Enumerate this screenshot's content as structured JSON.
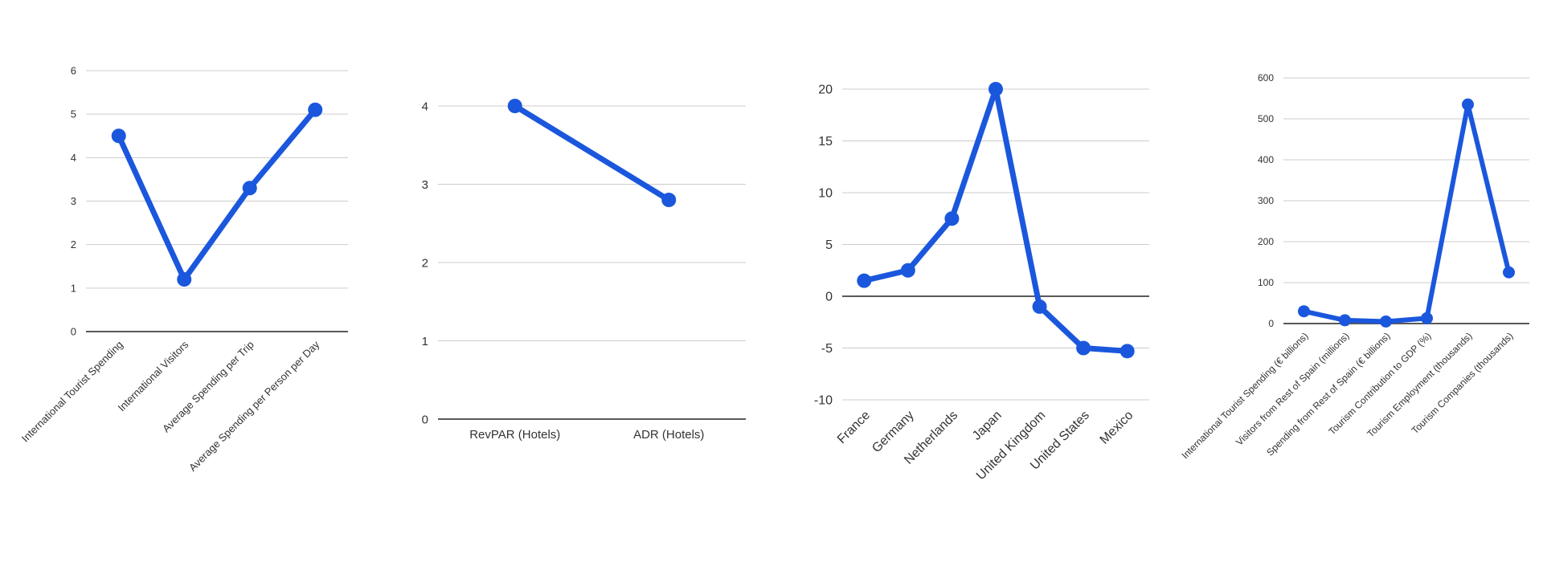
{
  "style": {
    "line_color": "#1b57dd",
    "grid_color": "#cccccc",
    "axis_color": "#595959",
    "label_color": "#333333",
    "background": "#ffffff"
  },
  "chart_data": [
    {
      "type": "line",
      "title": "",
      "xlabel": "",
      "ylabel": "",
      "categories": [
        "International Tourist Spending",
        "International Visitors",
        "Average Spending per Trip",
        "Average Spending per Person per Day"
      ],
      "values": [
        4.5,
        1.2,
        3.3,
        5.1
      ],
      "ylim": [
        0,
        6
      ],
      "ytick_step": 1,
      "x_label_rotation": 45,
      "grid": true,
      "legend": "none"
    },
    {
      "type": "line",
      "title": "",
      "xlabel": "",
      "ylabel": "",
      "categories": [
        "RevPAR (Hotels)",
        "ADR (Hotels)"
      ],
      "values": [
        4.0,
        2.8
      ],
      "ylim": [
        0,
        4
      ],
      "ytick_step": 1,
      "x_label_rotation": 0,
      "grid": true,
      "legend": "none"
    },
    {
      "type": "line",
      "title": "",
      "xlabel": "",
      "ylabel": "",
      "categories": [
        "France",
        "Germany",
        "Netherlands",
        "Japan",
        "United Kingdom",
        "United States",
        "Mexico"
      ],
      "values": [
        1.5,
        2.5,
        7.5,
        20,
        -1,
        -5,
        -5.3
      ],
      "ylim": [
        -10,
        20
      ],
      "ytick_step": 5,
      "x_label_rotation": 45,
      "grid": true,
      "legend": "none"
    },
    {
      "type": "line",
      "title": "",
      "xlabel": "",
      "ylabel": "",
      "categories": [
        "International Tourist Spending (€ billions)",
        "Visitors from Rest of Spain (millions)",
        "Spending from Rest of Spain (€ billions)",
        "Tourism Contribution to GDP (%)",
        "Tourism Employment (thousands)",
        "Tourism Companies (thousands)"
      ],
      "values": [
        30,
        8,
        5,
        13,
        535,
        125
      ],
      "ylim": [
        0,
        600
      ],
      "ytick_step": 100,
      "x_label_rotation": 45,
      "grid": true,
      "legend": "none"
    }
  ]
}
